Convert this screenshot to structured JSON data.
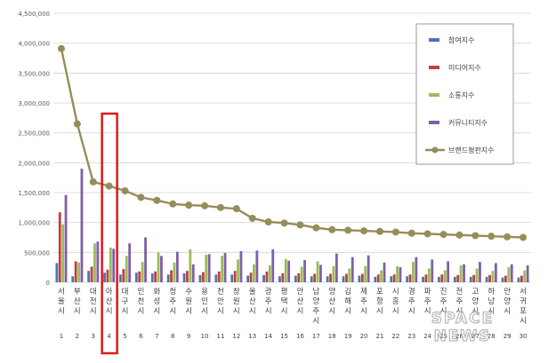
{
  "chart_data": {
    "type": "bar",
    "title": "",
    "xlabel": "",
    "ylabel": "",
    "ylim": [
      0,
      4500000
    ],
    "yticks": [
      0,
      500000,
      1000000,
      1500000,
      2000000,
      2500000,
      3000000,
      3500000,
      4000000,
      4500000
    ],
    "ytick_labels": [
      "0",
      "500,000",
      "1,000,000",
      "1,500,000",
      "2,000,000",
      "2,500,000",
      "3,000,000",
      "3,500,000",
      "4,000,000",
      "4,500,000"
    ],
    "grid": true,
    "legend_position": "right",
    "categories": [
      "서울시",
      "부산시",
      "대전시",
      "아산시",
      "대구시",
      "인천시",
      "화성시",
      "청주시",
      "수원시",
      "용인시",
      "천안시",
      "창원시",
      "울산시",
      "광주시",
      "평택시",
      "안산시",
      "남양주시",
      "양산시",
      "김해시",
      "제주시",
      "포항시",
      "시흥시",
      "경주시",
      "파주시",
      "진주시",
      "전주시",
      "고양시",
      "하남시",
      "안양시",
      "서귀포시"
    ],
    "ranks": [
      "1",
      "2",
      "3",
      "4",
      "5",
      "6",
      "7",
      "8",
      "9",
      "10",
      "11",
      "12",
      "13",
      "14",
      "15",
      "16",
      "17",
      "18",
      "19",
      "20",
      "21",
      "22",
      "23",
      "24",
      "25",
      "26",
      "27",
      "28",
      "29",
      "30"
    ],
    "series": [
      {
        "name": "참여지수",
        "kind": "bar",
        "color": "#4a76b7",
        "values": [
          320000,
          100000,
          190000,
          160000,
          130000,
          160000,
          150000,
          130000,
          150000,
          120000,
          130000,
          130000,
          110000,
          120000,
          100000,
          110000,
          100000,
          100000,
          100000,
          110000,
          90000,
          100000,
          100000,
          90000,
          90000,
          90000,
          90000,
          90000,
          80000,
          80000
        ]
      },
      {
        "name": "미디어지수",
        "kind": "bar",
        "color": "#c0413b",
        "values": [
          1170000,
          350000,
          260000,
          210000,
          220000,
          180000,
          180000,
          200000,
          190000,
          170000,
          180000,
          190000,
          160000,
          180000,
          150000,
          150000,
          140000,
          140000,
          140000,
          140000,
          130000,
          130000,
          130000,
          130000,
          130000,
          120000,
          120000,
          120000,
          110000,
          110000
        ]
      },
      {
        "name": "소통지수",
        "kind": "bar",
        "color": "#9bbb59",
        "values": [
          970000,
          330000,
          650000,
          580000,
          440000,
          340000,
          500000,
          330000,
          550000,
          460000,
          440000,
          380000,
          300000,
          280000,
          390000,
          260000,
          350000,
          270000,
          230000,
          270000,
          200000,
          270000,
          340000,
          230000,
          200000,
          280000,
          230000,
          190000,
          250000,
          200000
        ]
      },
      {
        "name": "커뮤니티지수",
        "kind": "bar",
        "color": "#7f5fa8",
        "values": [
          1460000,
          1900000,
          680000,
          560000,
          650000,
          750000,
          440000,
          510000,
          300000,
          470000,
          490000,
          520000,
          530000,
          550000,
          360000,
          370000,
          290000,
          480000,
          420000,
          450000,
          330000,
          250000,
          420000,
          380000,
          350000,
          300000,
          340000,
          320000,
          300000,
          280000
        ]
      },
      {
        "name": "브랜드평판지수",
        "kind": "line",
        "color": "#958d5b",
        "values": [
          3910000,
          2650000,
          1680000,
          1610000,
          1530000,
          1420000,
          1370000,
          1310000,
          1290000,
          1280000,
          1250000,
          1230000,
          1070000,
          1010000,
          990000,
          960000,
          910000,
          880000,
          870000,
          860000,
          850000,
          840000,
          820000,
          810000,
          800000,
          790000,
          780000,
          770000,
          760000,
          750000
        ]
      }
    ],
    "highlight": {
      "category": "아산시",
      "color": "#e0191b"
    }
  },
  "watermark": {
    "line1": "SPACE",
    "line2": "NEWS"
  },
  "colors": {
    "grid": "#dcdcdc",
    "axis_text": "#595959",
    "background": "#ffffff"
  }
}
